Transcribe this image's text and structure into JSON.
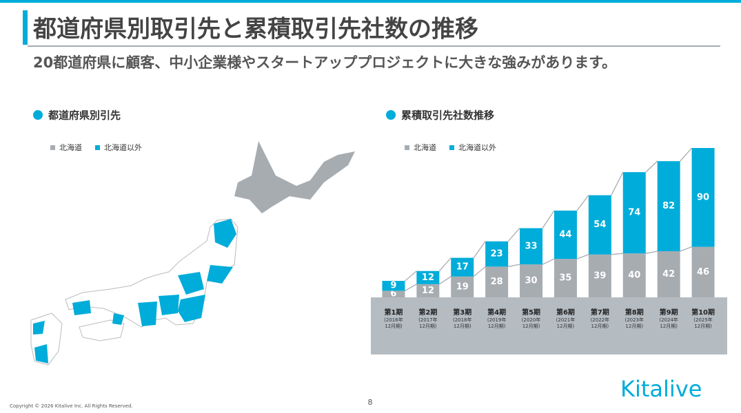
{
  "header": {
    "title": "都道府県別取引先と累積取引先社数の推移",
    "subtitle": "20都道府県に顧客、中小企業様やスタートアッププロジェクトに大きな強みがあります。"
  },
  "map": {
    "title": "都道府県別引先",
    "legend": [
      "北海道",
      "北海道以外"
    ]
  },
  "chart_data": {
    "type": "bar",
    "stacked": true,
    "title": "累積取引先社数推移",
    "categories": [
      "第1期",
      "第2期",
      "第3期",
      "第4期",
      "第5期",
      "第6期",
      "第7期",
      "第8期",
      "第9期",
      "第10期"
    ],
    "sublabels": [
      "(2016年\n12月期)",
      "(2017年\n12月期)",
      "(2018年\n12月期)",
      "(2019年\n12月期)",
      "(2020年\n12月期)",
      "(2021年\n12月期)",
      "(2022年\n12月期)",
      "(2023年\n12月期)",
      "(2024年\n12月期)",
      "(2025年\n12月期)"
    ],
    "series": [
      {
        "name": "北海道",
        "color": "#a7acb1",
        "values": [
          6,
          12,
          19,
          28,
          30,
          35,
          39,
          40,
          42,
          46
        ]
      },
      {
        "name": "北海道以外",
        "color": "#00acd9",
        "values": [
          9,
          12,
          17,
          23,
          33,
          44,
          54,
          74,
          82,
          90
        ]
      }
    ]
  },
  "footer": {
    "copyright": "Copyright © 2026 Kitalive Inc. All Rights Reserved.",
    "page": "8",
    "logo": "Kitalive"
  }
}
